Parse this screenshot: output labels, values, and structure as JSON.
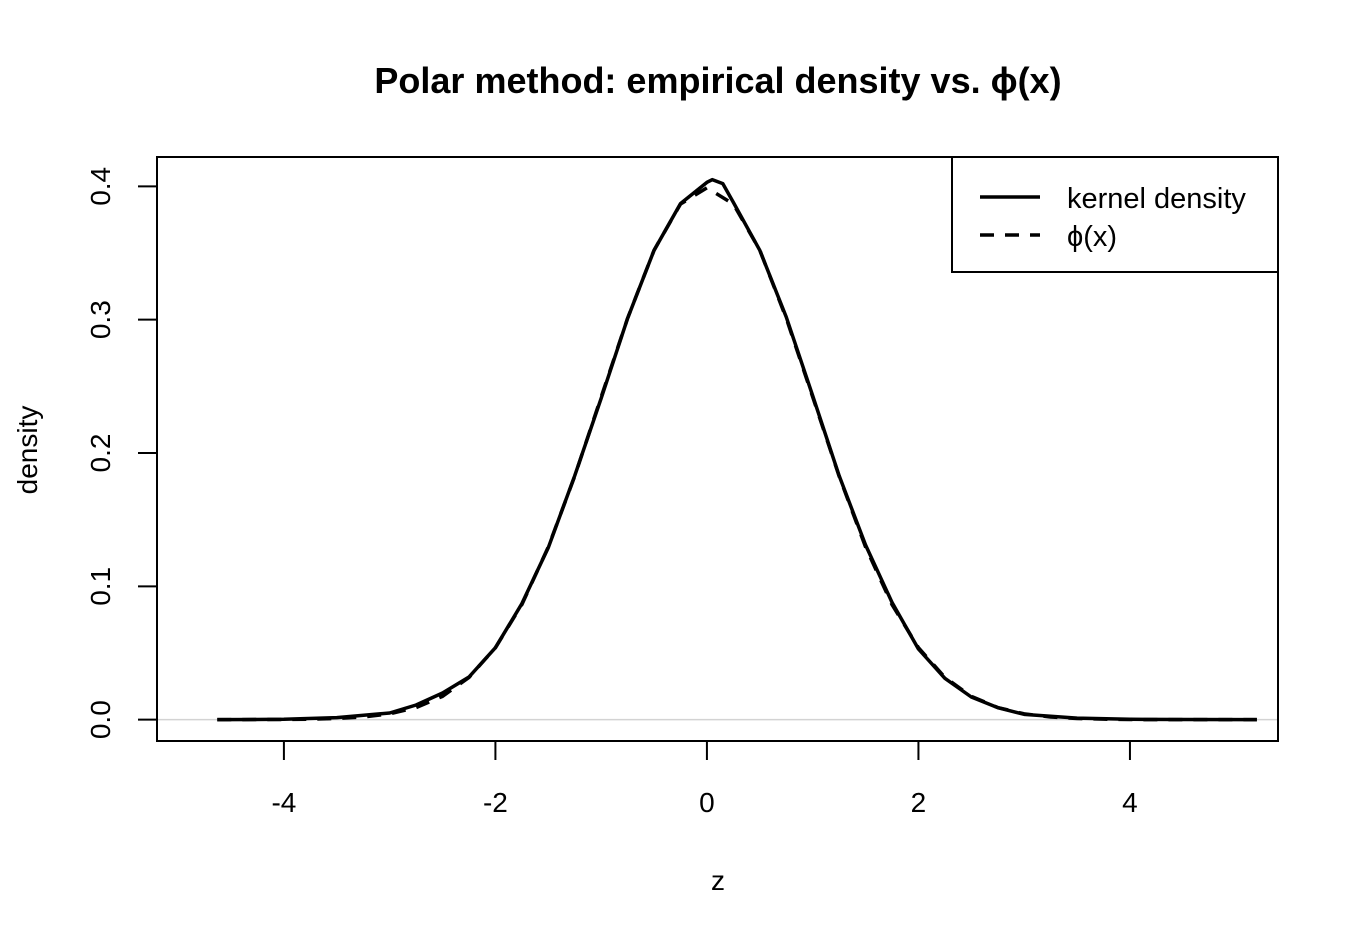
{
  "chart_data": {
    "type": "line",
    "title": "Polar method: empirical density vs. ϕ(x)",
    "xlabel": "z",
    "ylabel": "density",
    "xlim": [
      -5.2,
      5.4
    ],
    "ylim": [
      -0.016,
      0.422
    ],
    "x_ticks": [
      "-4",
      "-2",
      "0",
      "2",
      "4"
    ],
    "y_ticks": [
      "0.0",
      "0.1",
      "0.2",
      "0.3",
      "0.4"
    ],
    "reference_line": {
      "y": 0,
      "color": "#d3d3d3"
    },
    "legend": {
      "position": "top-right"
    },
    "series": [
      {
        "name": "kernel density",
        "style": "solid",
        "x": [
          -4.63,
          -4.0,
          -3.5,
          -3.0,
          -2.75,
          -2.5,
          -2.25,
          -2.0,
          -1.75,
          -1.5,
          -1.25,
          -1.0,
          -0.75,
          -0.5,
          -0.25,
          0.0,
          0.05,
          0.15,
          0.25,
          0.5,
          0.75,
          1.0,
          1.25,
          1.5,
          1.75,
          2.0,
          2.25,
          2.5,
          2.75,
          3.0,
          3.5,
          4.0,
          4.5,
          5.2
        ],
        "y": [
          0.0,
          0.0003,
          0.0015,
          0.005,
          0.011,
          0.02,
          0.032,
          0.054,
          0.087,
          0.129,
          0.183,
          0.241,
          0.301,
          0.352,
          0.387,
          0.403,
          0.405,
          0.402,
          0.388,
          0.352,
          0.302,
          0.243,
          0.183,
          0.131,
          0.088,
          0.053,
          0.031,
          0.017,
          0.009,
          0.004,
          0.0012,
          0.0003,
          0.0001,
          0.0
        ]
      },
      {
        "name": "ϕ(x)",
        "style": "dashed",
        "x": [
          -4.63,
          -4.5,
          -4.25,
          -4.0,
          -3.75,
          -3.5,
          -3.25,
          -3.0,
          -2.75,
          -2.5,
          -2.25,
          -2.0,
          -1.75,
          -1.5,
          -1.25,
          -1.0,
          -0.75,
          -0.5,
          -0.25,
          0.0,
          0.25,
          0.5,
          0.75,
          1.0,
          1.25,
          1.5,
          1.75,
          2.0,
          2.25,
          2.5,
          2.75,
          3.0,
          3.25,
          3.5,
          3.75,
          4.0,
          4.5,
          5.2
        ],
        "y": [
          0.0,
          0.0,
          0.0001,
          0.0001,
          0.0004,
          0.0009,
          0.002,
          0.0044,
          0.0091,
          0.0175,
          0.0317,
          0.054,
          0.0863,
          0.1295,
          0.1826,
          0.242,
          0.3011,
          0.3521,
          0.3867,
          0.3989,
          0.3867,
          0.3521,
          0.3011,
          0.242,
          0.1826,
          0.1295,
          0.0863,
          0.054,
          0.0317,
          0.0175,
          0.0091,
          0.0044,
          0.002,
          0.0009,
          0.0004,
          0.0001,
          0.0,
          0.0
        ]
      }
    ]
  }
}
